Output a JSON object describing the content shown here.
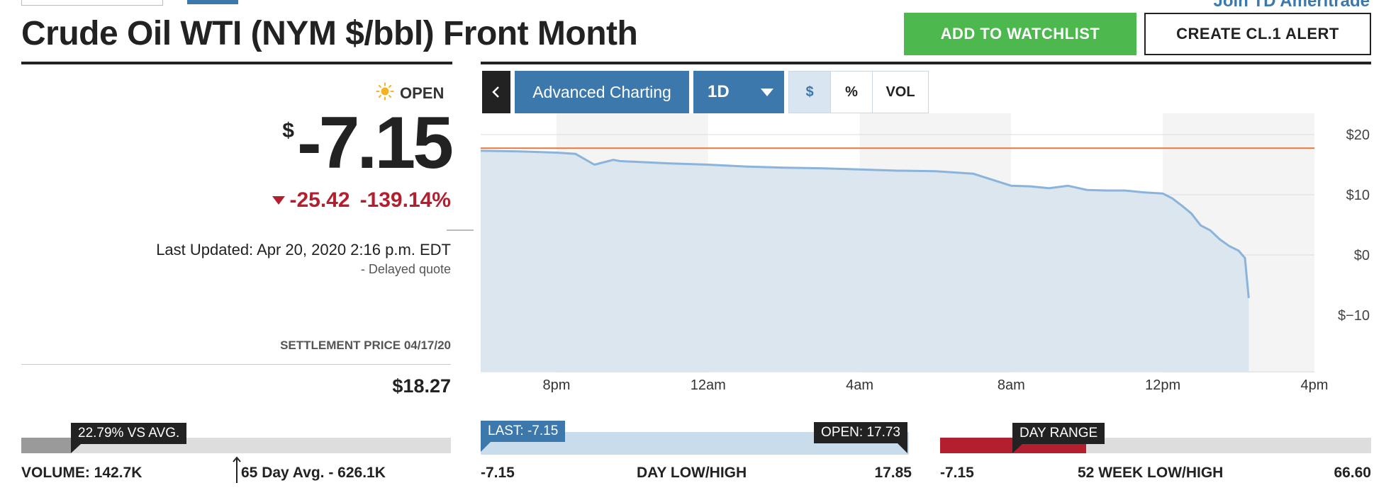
{
  "header": {
    "join_link": "Join TD Ameritrade",
    "title": "Crude Oil WTI (NYM $/bbl) Front Month",
    "watchlist_label": "ADD TO WATCHLIST",
    "alert_label": "CREATE CL.1 ALERT"
  },
  "quote": {
    "status": "OPEN",
    "status_icon": "sun-icon",
    "currency": "$",
    "price": "-7.15",
    "change": "-25.42",
    "change_pct": "-139.14%",
    "last_updated": "Last Updated: Apr 20, 2020 2:16 p.m. EDT",
    "delayed": "-  Delayed quote",
    "settlement_label": "SETTLEMENT PRICE 04/17/20",
    "settlement_value": "$18.27",
    "colors": {
      "negative": "#b31f2e",
      "accent": "#3d78ad",
      "buy": "#4cb84e"
    }
  },
  "toolbar": {
    "collapse_icon": "chevron-left-icon",
    "advanced_label": "Advanced Charting",
    "range_label": "1D",
    "range_icon": "caret-down-icon",
    "toggles": [
      "$",
      "%",
      "VOL"
    ],
    "selected_toggle": "$"
  },
  "chart_data": {
    "type": "area",
    "x_ticks": [
      "8pm",
      "12am",
      "4am",
      "8am",
      "12pm",
      "4pm"
    ],
    "y_ticks": [
      "$20",
      "$10",
      "$0",
      "$−10"
    ],
    "ylim": [
      -10,
      20
    ],
    "reference_line": {
      "value": 17.73,
      "color": "#e9773a"
    },
    "series": [
      {
        "color": "#8ab4db",
        "x": [
          "6:00pm",
          "7:00pm",
          "8:00pm",
          "8:30pm",
          "9:00pm",
          "9:30pm",
          "9:40pm",
          "10:00pm",
          "11:00pm",
          "12:00am",
          "1:00am",
          "2:00am",
          "3:00am",
          "4:00am",
          "5:00am",
          "6:00am",
          "7:00am",
          "7:30am",
          "8:00am",
          "8:30am",
          "9:00am",
          "9:30am",
          "10:00am",
          "10:30am",
          "11:00am",
          "11:30am",
          "12:00pm",
          "12:15pm",
          "12:30pm",
          "12:45pm",
          "1:00pm",
          "1:15pm",
          "1:30pm",
          "1:45pm",
          "2:00pm",
          "2:10pm",
          "2:16pm"
        ],
        "y": [
          17.3,
          17.2,
          17.0,
          16.8,
          15.0,
          15.8,
          15.6,
          15.5,
          15.2,
          15.0,
          14.7,
          14.5,
          14.4,
          14.2,
          14.0,
          13.9,
          13.5,
          12.5,
          11.5,
          11.4,
          11.1,
          11.5,
          10.8,
          10.7,
          10.7,
          10.4,
          10.2,
          9.4,
          8.2,
          6.9,
          4.9,
          4.1,
          2.6,
          1.5,
          0.7,
          -0.5,
          -7.15
        ]
      }
    ]
  },
  "volume": {
    "vs_avg_label": "22.79% VS AVG.",
    "vs_avg_value": 22.79,
    "volume_label": "VOLUME: 142.7K",
    "avg_label": "65 Day Avg. - 626.1K"
  },
  "day_range": {
    "last_label": "LAST: -7.15",
    "open_label": "OPEN: 17.73",
    "low": "-7.15",
    "title": "DAY LOW/HIGH",
    "high": "17.85"
  },
  "week_range": {
    "flag_label": "DAY RANGE",
    "low": "-7.15",
    "title": "52 WEEK LOW/HIGH",
    "high": "66.60"
  }
}
